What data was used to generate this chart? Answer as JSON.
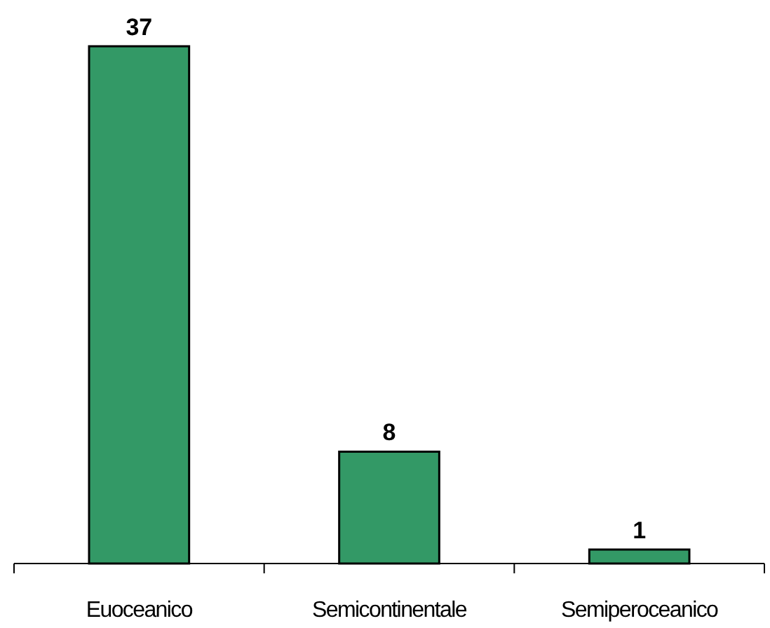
{
  "chart_data": {
    "type": "bar",
    "categories": [
      "Euoceanico",
      "Semicontinentale",
      "Semiperoceanico"
    ],
    "values": [
      37,
      8,
      1
    ],
    "color": "#339966",
    "data_labels": true
  }
}
